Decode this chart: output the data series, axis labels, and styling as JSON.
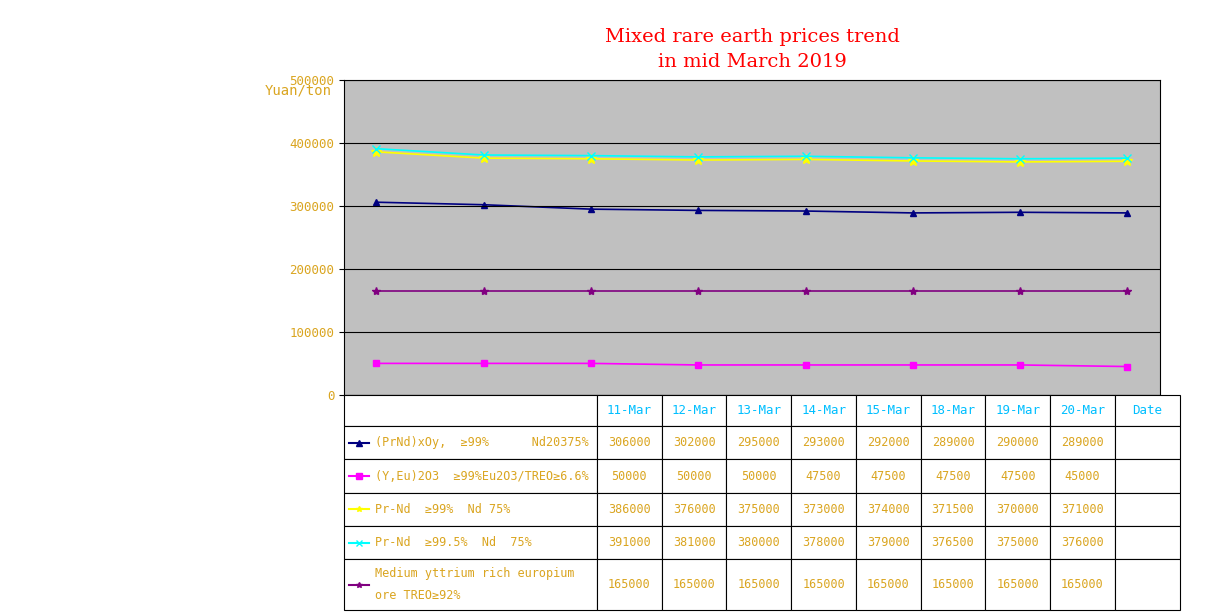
{
  "title": "Mixed rare earth prices trend\nin mid March 2019",
  "ylabel": "Yuan/ton",
  "dates": [
    "11-Mar",
    "12-Mar",
    "13-Mar",
    "14-Mar",
    "15-Mar",
    "18-Mar",
    "19-Mar",
    "20-Mar"
  ],
  "series": [
    {
      "label": "(PrNd)xOy,  ≥99%      Nd20375%",
      "values": [
        306000,
        302000,
        295000,
        293000,
        292000,
        289000,
        290000,
        289000
      ],
      "color": "#000080",
      "marker": "^",
      "linestyle": "-",
      "linewidth": 1.2,
      "markersize": 5,
      "table_label": "(PrNd)xOy,  ≥99%      Nd20375%"
    },
    {
      "label": "(Y,Eu)2O3  ≥99%Eu2O3/TREO≥6.6%",
      "values": [
        50000,
        50000,
        50000,
        47500,
        47500,
        47500,
        47500,
        45000
      ],
      "color": "#FF00FF",
      "marker": "s",
      "linestyle": "-",
      "linewidth": 1.2,
      "markersize": 5,
      "table_label": "(Y,Eu)2O3  ≥99%Eu2O3/TREO≥6.6%"
    },
    {
      "label": "Pr-Nd  ≥99%  Nd 75%",
      "values": [
        386000,
        376000,
        375000,
        373000,
        374000,
        371500,
        370000,
        371000
      ],
      "color": "#FFFF00",
      "marker": "*",
      "linestyle": "-",
      "linewidth": 1.2,
      "markersize": 7,
      "table_label": "Pr-Nd  ≥99%  Nd 75%"
    },
    {
      "label": "Pr-Nd  ≥99.5%  Nd  75%",
      "values": [
        391000,
        381000,
        380000,
        378000,
        379000,
        376500,
        375000,
        376000
      ],
      "color": "#00FFFF",
      "marker": "x",
      "linestyle": "-",
      "linewidth": 1.2,
      "markersize": 6,
      "table_label": "Pr-Nd  ≥99.5%  Nd  75%"
    },
    {
      "label": "Medium yttrium rich europium\nore TREO≥92%",
      "values": [
        165000,
        165000,
        165000,
        165000,
        165000,
        165000,
        165000,
        165000
      ],
      "color": "#800080",
      "marker": "*",
      "linestyle": "-",
      "linewidth": 1.2,
      "markersize": 6,
      "table_label": "Medium yttrium rich europium\nore TREO≥92%"
    }
  ],
  "ylim": [
    0,
    500000
  ],
  "yticks": [
    0,
    100000,
    200000,
    300000,
    400000,
    500000
  ],
  "bg_color": "#C0C0C0",
  "title_color": "#FF0000",
  "table_number_color": "#DAA520",
  "table_header_color": "#00BFFF",
  "table_label_color": "#DAA520",
  "figsize": [
    12.08,
    6.16
  ],
  "dpi": 100
}
